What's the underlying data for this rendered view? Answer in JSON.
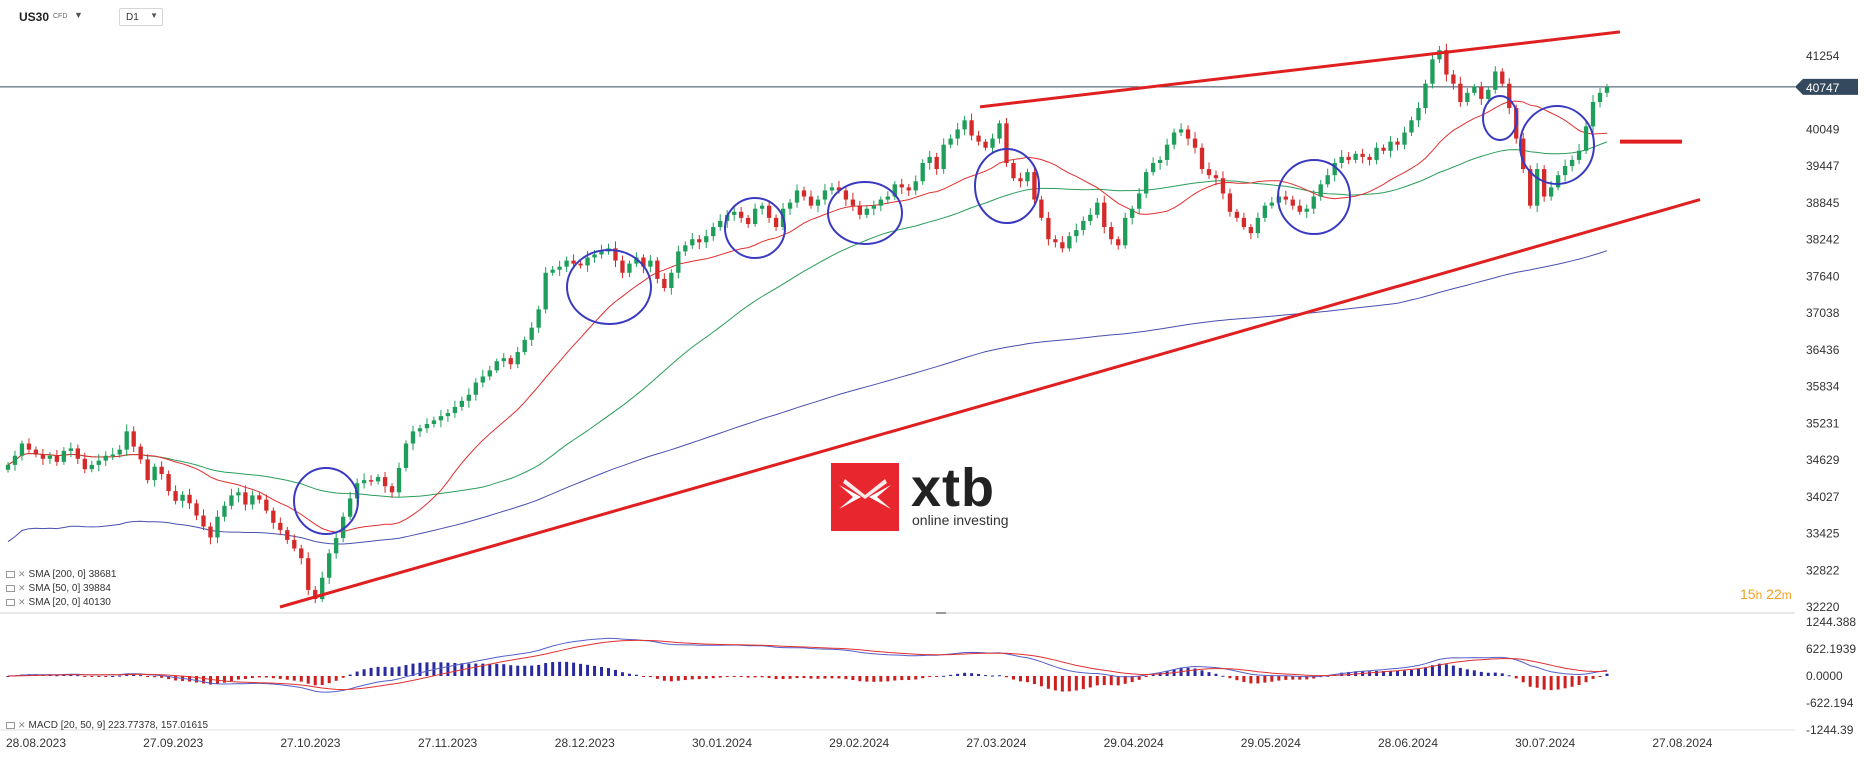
{
  "toolbar": {
    "symbol": "US30",
    "symbol_type": "CFD",
    "timeframe": "D1"
  },
  "indicators": {
    "sma200": {
      "label": "SMA [200, 0] 38681",
      "color": "#4a4fb0"
    },
    "sma50": {
      "label": "SMA [50, 0] 39884",
      "color": "#2a9d5a"
    },
    "sma20": {
      "label": "SMA [20, 0] 40130",
      "color": "#e03030"
    },
    "macd": {
      "label": "MACD [20, 50, 9] 223.77378, 157.01615"
    }
  },
  "countdown": {
    "hours": "15",
    "h_unit": "h",
    "minutes": "22",
    "m_unit": "m"
  },
  "brand": {
    "name": "xtb",
    "tagline": "online investing",
    "color": "#e8262e"
  },
  "colors": {
    "up": "#1e9e5a",
    "down": "#d42a2a",
    "trendline": "#e02020",
    "marker": "#3a3ac0",
    "price_tag": "#34495e"
  },
  "chart_data": {
    "type": "candlestick",
    "symbol": "US30",
    "timeframe": "D1",
    "current_price": "40747",
    "price_ticks": [
      "41254",
      "40049",
      "39447",
      "38845",
      "38242",
      "37640",
      "37038",
      "36436",
      "35834",
      "35231",
      "34629",
      "34027",
      "33425",
      "32822",
      "32220"
    ],
    "date_ticks": [
      "28.08.2023",
      "27.09.2023",
      "27.10.2023",
      "27.11.2023",
      "28.12.2023",
      "30.01.2024",
      "29.02.2024",
      "27.03.2024",
      "29.04.2024",
      "29.05.2024",
      "28.06.2024",
      "30.07.2024",
      "27.08.2024"
    ],
    "ohlc_approx_close": [
      34550,
      34700,
      34900,
      34800,
      34720,
      34650,
      34700,
      34600,
      34780,
      34820,
      34650,
      34480,
      34550,
      34620,
      34700,
      34720,
      34800,
      35100,
      34850,
      34640,
      34300,
      34520,
      34400,
      34120,
      33960,
      34060,
      33920,
      33720,
      33540,
      33360,
      33700,
      33880,
      34050,
      34100,
      33900,
      34050,
      33980,
      33800,
      33600,
      33480,
      33320,
      33180,
      33020,
      32500,
      32350,
      32700,
      33100,
      33350,
      33700,
      34000,
      34250,
      34300,
      34280,
      34350,
      34200,
      34100,
      34500,
      34900,
      35100,
      35150,
      35220,
      35280,
      35350,
      35400,
      35500,
      35600,
      35700,
      35900,
      36000,
      36100,
      36250,
      36300,
      36200,
      36400,
      36600,
      36800,
      37100,
      37700,
      37750,
      37800,
      37900,
      37850,
      37820,
      37950,
      38000,
      38050,
      38100,
      37900,
      37700,
      37850,
      37950,
      37800,
      37900,
      37600,
      37450,
      37700,
      38050,
      38150,
      38250,
      38200,
      38300,
      38450,
      38550,
      38650,
      38700,
      38600,
      38500,
      38750,
      38800,
      38600,
      38450,
      38750,
      38850,
      39050,
      38950,
      38800,
      38900,
      39050,
      39100,
      39050,
      38900,
      38800,
      38650,
      38750,
      38800,
      38900,
      38950,
      39150,
      39100,
      39050,
      39200,
      39500,
      39600,
      39400,
      39800,
      39900,
      40050,
      40200,
      39950,
      39850,
      39750,
      39900,
      40150,
      39500,
      39250,
      39200,
      39350,
      38900,
      38600,
      38250,
      38200,
      38100,
      38300,
      38400,
      38550,
      38650,
      38850,
      38450,
      38250,
      38150,
      38600,
      38750,
      39000,
      39350,
      39500,
      39550,
      39800,
      40000,
      40050,
      39900,
      39750,
      39400,
      39300,
      39250,
      39000,
      38700,
      38600,
      38450,
      38350,
      38600,
      38800,
      38850,
      38950,
      38900,
      38800,
      38700,
      38750,
      38950,
      39150,
      39300,
      39500,
      39600,
      39550,
      39650,
      39600,
      39550,
      39750,
      39700,
      39850,
      39800,
      40000,
      40200,
      40400,
      40800,
      41200,
      41350,
      40950,
      40800,
      40500,
      40650,
      40750,
      40550,
      40700,
      41000,
      40800,
      40400,
      39900,
      39400,
      38800,
      39400,
      38950,
      39100,
      39300,
      39450,
      39550,
      39700,
      40100,
      40500,
      40650,
      40747
    ],
    "sma_series": [
      {
        "name": "SMA [200, 0]",
        "last": 38681
      },
      {
        "name": "SMA [50, 0]",
        "last": 39884
      },
      {
        "name": "SMA [20, 0]",
        "last": 40130
      }
    ],
    "macd_ticks": [
      "1244.388",
      "622.1939",
      "0.0000",
      "-622.194",
      "-1244.39"
    ],
    "macd_last": [
      223.77378,
      157.01615
    ],
    "annotations": [
      "rising channel upper trendline",
      "rising channel lower trendline",
      "horizontal level at current price",
      "circled pullbacks to SMA 20/50"
    ]
  }
}
